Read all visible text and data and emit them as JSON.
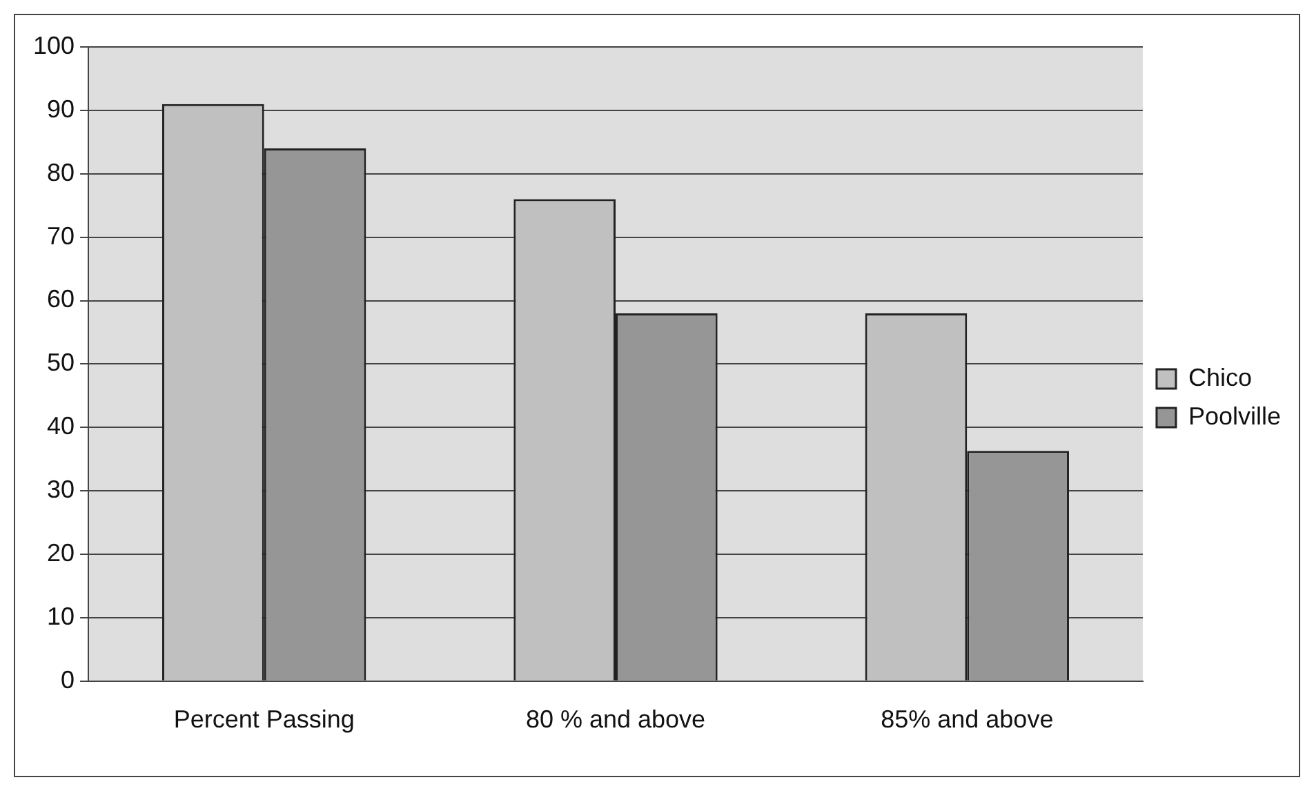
{
  "chart_data": {
    "type": "bar",
    "categories": [
      "Percent Passing",
      "80 % and above",
      "85% and above"
    ],
    "series": [
      {
        "name": "Chico",
        "color": "#c0c0c0",
        "values": [
          91,
          76,
          58
        ]
      },
      {
        "name": "Poolville",
        "color": "#969696",
        "values": [
          84,
          58,
          36.3
        ]
      }
    ],
    "ylim": [
      0,
      100
    ],
    "yticks": [
      0,
      10,
      20,
      30,
      40,
      50,
      60,
      70,
      80,
      90,
      100
    ],
    "grid": "y",
    "legend": "right"
  }
}
